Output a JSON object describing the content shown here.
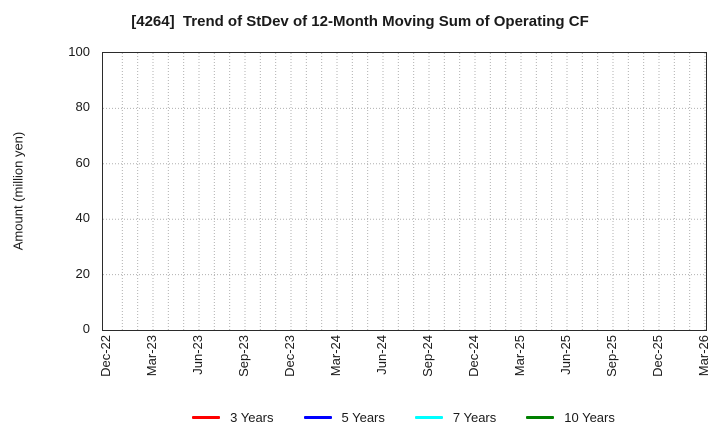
{
  "title": "[4264]  Trend of StDev of 12-Month Moving Sum of Operating CF",
  "chart_data": {
    "type": "line",
    "title": "[4264]  Trend of StDev of 12-Month Moving Sum of Operating CF",
    "xlabel": "",
    "ylabel": "Amount (million yen)",
    "ylim": [
      0,
      100
    ],
    "yticks": [
      0,
      20,
      40,
      60,
      80,
      100
    ],
    "y_gridlines": [
      20,
      40,
      60,
      80
    ],
    "x_tick_labels": [
      "Dec-22",
      "Mar-23",
      "Jun-23",
      "Sep-23",
      "Dec-23",
      "Mar-24",
      "Jun-24",
      "Sep-24",
      "Dec-24",
      "Mar-25",
      "Jun-25",
      "Sep-25",
      "Dec-25",
      "Mar-26"
    ],
    "x_total_months": 39,
    "x_gridline_interval_months": 1,
    "grid": "dotted",
    "grid_color": "#b0b0b0",
    "legend_position": "bottom",
    "series": [
      {
        "name": "3 Years",
        "color": "#ff0000",
        "values": []
      },
      {
        "name": "5 Years",
        "color": "#0000ff",
        "values": []
      },
      {
        "name": "7 Years",
        "color": "#00ffff",
        "values": []
      },
      {
        "name": "10 Years",
        "color": "#008000",
        "values": []
      }
    ]
  }
}
